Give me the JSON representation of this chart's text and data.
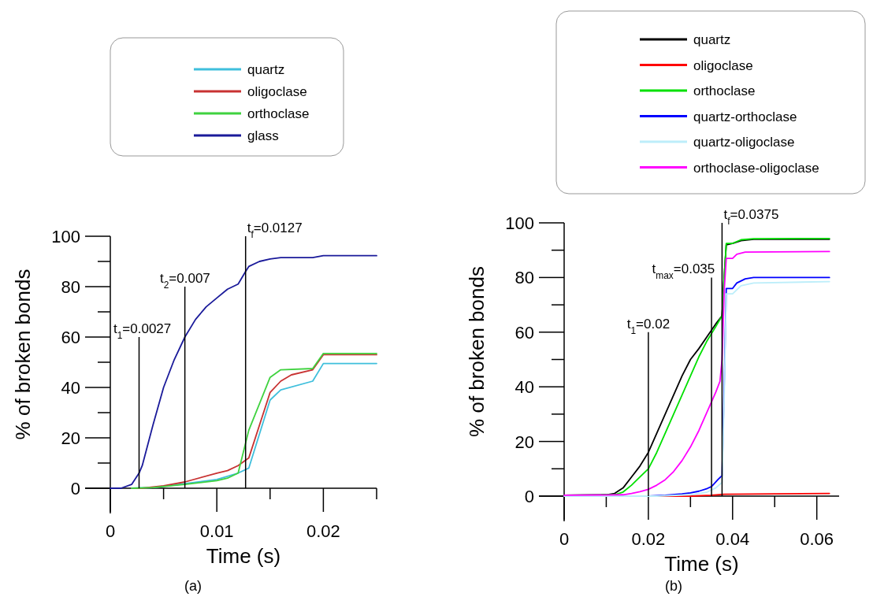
{
  "chart_data": [
    {
      "type": "line",
      "xlabel": "Time (s)",
      "ylabel": "% of broken bonds",
      "xlim": [
        0,
        0.025
      ],
      "ylim": [
        0,
        100
      ],
      "xticks": [
        0,
        {
          "value": 0.005,
          "label": null
        },
        0.01,
        {
          "value": 0.015,
          "label": null
        },
        0.02,
        {
          "value": 0.025,
          "label": null
        }
      ],
      "yticks": [
        0,
        {
          "value": 10,
          "label": null
        },
        20,
        {
          "value": 30,
          "label": null
        },
        40,
        {
          "value": 50,
          "label": null
        },
        60,
        {
          "value": 70,
          "label": null
        },
        80,
        {
          "value": 90,
          "label": null
        },
        100
      ],
      "grid": false,
      "legend": "top",
      "marker": "none",
      "line_style": "solid",
      "series": [
        {
          "name": "quartz",
          "color": "#3fbfdc",
          "x": [
            0.002,
            0.004,
            0.007,
            0.01,
            0.012,
            0.013,
            0.015,
            0.016,
            0.019,
            0.02,
            0.025
          ],
          "values": [
            0,
            0.3,
            1.8,
            3.5,
            6,
            8,
            35,
            39,
            42.5,
            49.5,
            49.5
          ]
        },
        {
          "name": "oligoclase",
          "color": "#c83232",
          "x": [
            0.002,
            0.003,
            0.005,
            0.007,
            0.01,
            0.011,
            0.012,
            0.013,
            0.015,
            0.016,
            0.017,
            0.019,
            0.02,
            0.025
          ],
          "values": [
            0,
            0,
            1,
            2.5,
            6,
            7,
            9,
            12,
            38,
            42.5,
            45,
            47,
            53,
            53
          ]
        },
        {
          "name": "orthoclase",
          "color": "#3fd23f",
          "x": [
            0.002,
            0.004,
            0.007,
            0.01,
            0.011,
            0.012,
            0.013,
            0.015,
            0.016,
            0.019,
            0.02,
            0.025
          ],
          "values": [
            0,
            0.3,
            1.5,
            3,
            4,
            6,
            23,
            44,
            47,
            47.5,
            53.5,
            53.5
          ]
        },
        {
          "name": "glass",
          "color": "#1a1a9a",
          "x": [
            0,
            0.001,
            0.002,
            0.0027,
            0.003,
            0.004,
            0.005,
            0.006,
            0.007,
            0.008,
            0.009,
            0.01,
            0.011,
            0.012,
            0.0127,
            0.013,
            0.014,
            0.015,
            0.016,
            0.019,
            0.02,
            0.025
          ],
          "values": [
            0,
            0,
            1.5,
            6,
            9,
            25,
            40,
            51,
            60,
            67,
            72,
            75.5,
            79,
            81,
            86,
            88,
            90,
            91,
            91.5,
            91.5,
            92.3,
            92.3
          ]
        }
      ],
      "ref_lines": [
        {
          "axis": "x",
          "value": 0.0027,
          "label": "t$_{1}$=0.0027"
        },
        {
          "axis": "x",
          "value": 0.007,
          "label": "t$_{2}$=0.007"
        },
        {
          "axis": "x",
          "value": 0.0127,
          "label": "t$_{f}$=0.0127"
        }
      ],
      "annotations": [
        "(a)"
      ]
    },
    {
      "type": "line",
      "xlabel": "Time (s)",
      "ylabel": "% of broken bonds",
      "xlim": [
        0,
        0.0653
      ],
      "ylim": [
        0,
        100
      ],
      "xticks": [
        0,
        {
          "value": 0.01,
          "label": null
        },
        0.02,
        {
          "value": 0.03,
          "label": null
        },
        0.04,
        {
          "value": 0.05,
          "label": null
        },
        0.06
      ],
      "yticks": [
        0,
        {
          "value": 10,
          "label": null
        },
        20,
        {
          "value": 30,
          "label": null
        },
        40,
        {
          "value": 50,
          "label": null
        },
        60,
        {
          "value": 70,
          "label": null
        },
        80,
        {
          "value": 90,
          "label": null
        },
        100
      ],
      "grid": false,
      "legend": "top",
      "marker": "none",
      "line_style": "solid",
      "series": [
        {
          "name": "quartz",
          "color": "#000000",
          "x": [
            0,
            0.01,
            0.012,
            0.014,
            0.016,
            0.018,
            0.02,
            0.022,
            0.024,
            0.026,
            0.028,
            0.03,
            0.032,
            0.034,
            0.036,
            0.0375,
            0.038,
            0.0385,
            0.04,
            0.042,
            0.045,
            0.063
          ],
          "values": [
            0.3,
            0.5,
            1,
            3,
            7,
            11,
            16,
            23,
            30,
            37,
            44,
            50,
            54,
            58.5,
            63,
            66,
            80,
            92,
            92.5,
            93.5,
            94,
            94
          ]
        },
        {
          "name": "oligoclase",
          "color": "#ff0000",
          "x": [
            0,
            0.03,
            0.035,
            0.038,
            0.063
          ],
          "values": [
            0,
            0,
            0.3,
            0.7,
            1
          ]
        },
        {
          "name": "orthoclase",
          "color": "#00e000",
          "x": [
            0,
            0.012,
            0.014,
            0.016,
            0.018,
            0.02,
            0.022,
            0.024,
            0.026,
            0.028,
            0.03,
            0.032,
            0.034,
            0.036,
            0.0375,
            0.038,
            0.0385,
            0.04,
            0.042,
            0.045,
            0.063
          ],
          "values": [
            0.3,
            0.5,
            1.5,
            4,
            7,
            10,
            16,
            23,
            30,
            37,
            44,
            51,
            57,
            62,
            66,
            80,
            92.5,
            92.5,
            93.8,
            94.2,
            94.3
          ]
        },
        {
          "name": "quartz-orthoclase",
          "color": "#0000ff",
          "x": [
            0,
            0.02,
            0.024,
            0.028,
            0.03,
            0.032,
            0.034,
            0.035,
            0.0365,
            0.0375,
            0.038,
            0.0385,
            0.04,
            0.041,
            0.043,
            0.045,
            0.063
          ],
          "values": [
            0,
            0,
            0.3,
            0.8,
            1.2,
            1.8,
            2.8,
            3.5,
            6,
            7.5,
            40,
            76,
            76,
            78,
            79.5,
            80,
            80
          ]
        },
        {
          "name": "quartz-oligoclase",
          "color": "#bdeefa",
          "x": [
            0,
            0.022,
            0.03,
            0.034,
            0.036,
            0.0375,
            0.038,
            0.0385,
            0.04,
            0.042,
            0.045,
            0.063
          ],
          "values": [
            0,
            0,
            0.5,
            1.5,
            3,
            5,
            35,
            74,
            74,
            77,
            78,
            78.5
          ]
        },
        {
          "name": "orthoclase-oligoclase",
          "color": "#ff00ff",
          "x": [
            0,
            0.014,
            0.016,
            0.018,
            0.02,
            0.022,
            0.024,
            0.026,
            0.028,
            0.03,
            0.032,
            0.034,
            0.036,
            0.037,
            0.0375,
            0.038,
            0.0385,
            0.04,
            0.041,
            0.043,
            0.063
          ],
          "values": [
            0.3,
            0.5,
            1,
            1.6,
            2.5,
            4,
            6,
            9,
            13,
            18,
            24,
            31,
            38,
            42,
            50,
            75,
            87,
            87,
            88.5,
            89.3,
            89.5
          ]
        }
      ],
      "ref_lines": [
        {
          "axis": "x",
          "value": 0.02,
          "label": "t$_{1}$=0.02"
        },
        {
          "axis": "x",
          "value": 0.035,
          "label": "t$_{max}$=0.035"
        },
        {
          "axis": "x",
          "value": 0.0375,
          "label": "t$_{f}$=0.0375"
        }
      ],
      "annotations": [
        "(b)"
      ]
    }
  ]
}
